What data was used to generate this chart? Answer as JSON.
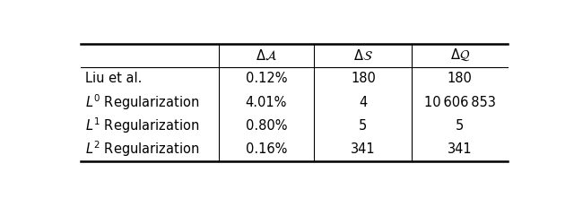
{
  "col_headers_math": [
    "$\\Delta\\mathcal{A}$",
    "$\\Delta\\mathcal{S}$",
    "$\\Delta\\mathcal{Q}$"
  ],
  "row_labels": [
    "Liu et al.",
    "$L^0$ Regularization",
    "$L^1$ Regularization",
    "$L^2$ Regularization"
  ],
  "data": [
    [
      "0.12%",
      "180",
      "180"
    ],
    [
      "4.01%",
      "4",
      "10 606 853"
    ],
    [
      "0.80%",
      "5",
      "5"
    ],
    [
      "0.16%",
      "341",
      "341"
    ]
  ],
  "bg_color": "#ffffff",
  "text_color": "#000000",
  "fontsize": 10.5
}
